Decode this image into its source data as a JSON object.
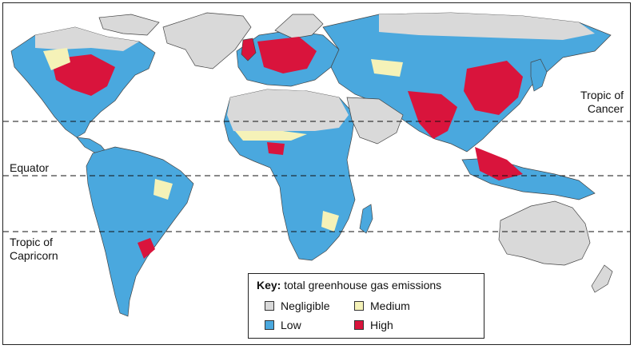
{
  "colors": {
    "negligible": "#d9d9d9",
    "low": "#4aa8de",
    "medium": "#f5f2b8",
    "high": "#d9143c",
    "ocean": "#ffffff",
    "border": "#444444"
  },
  "latitude_lines": {
    "cancer_label_line1": "Tropic of",
    "cancer_label_line2": "Cancer",
    "equator_label": "Equator",
    "capricorn_label_line1": "Tropic of",
    "capricorn_label_line2": "Capricorn"
  },
  "key": {
    "heading": "Key:",
    "title": " total greenhouse gas emissions",
    "items": [
      {
        "label": "Negligible",
        "color": "#d9d9d9"
      },
      {
        "label": "Medium",
        "color": "#f5f2b8"
      },
      {
        "label": "Low",
        "color": "#4aa8de"
      },
      {
        "label": "High",
        "color": "#d9143c"
      }
    ]
  }
}
